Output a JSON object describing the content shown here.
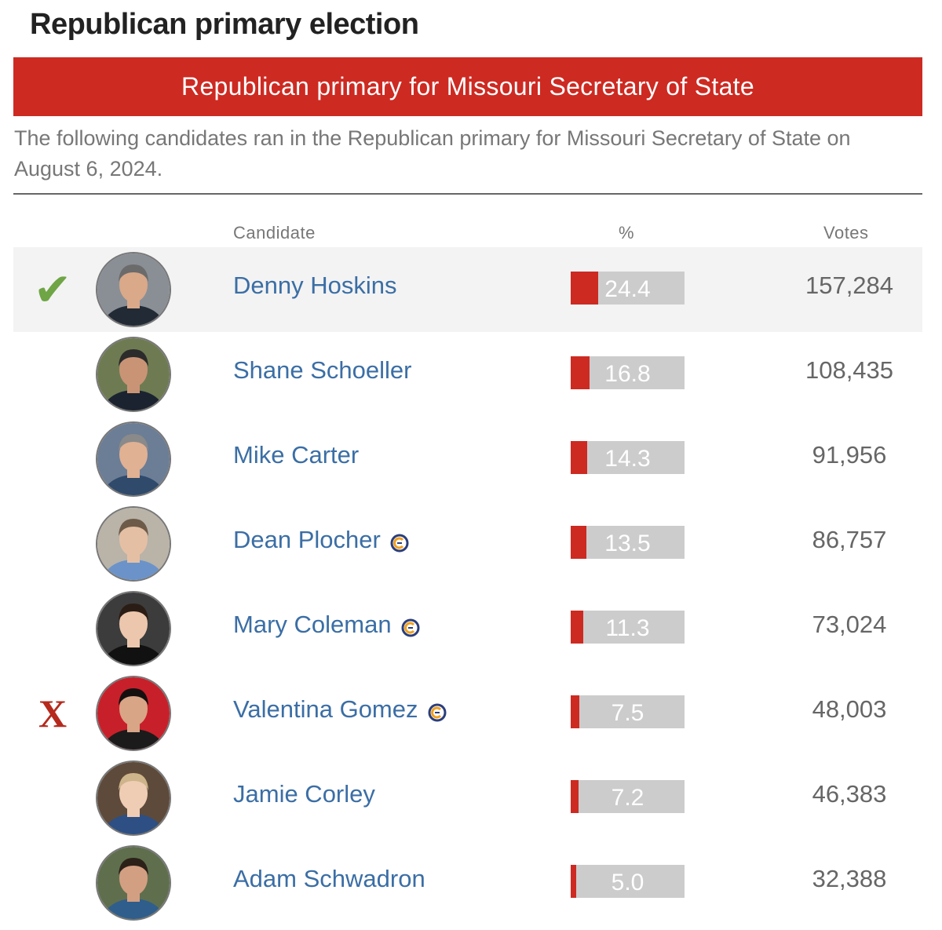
{
  "page_title": "Republican primary election",
  "banner": "Republican primary for Missouri Secretary of State",
  "description": "The following candidates ran in the Republican primary for Missouri Secretary of State on August 6, 2024.",
  "headers": {
    "candidate": "Candidate",
    "percent": "%",
    "votes": "Votes"
  },
  "colors": {
    "accent": "#cd2a22",
    "bar_bg": "#cccccc",
    "link": "#3b6ea5",
    "winner_check": "#6fa545",
    "loser_x": "#b52a1d",
    "winner_row_bg": "#f3f3f3"
  },
  "candidates": [
    {
      "name": "Denny Hoskins",
      "percent": "24.4",
      "percent_value": 24.4,
      "votes": "157,284",
      "status": "winner",
      "mark": "✔",
      "c_icon": false
    },
    {
      "name": "Shane Schoeller",
      "percent": "16.8",
      "percent_value": 16.8,
      "votes": "108,435",
      "status": "",
      "mark": "",
      "c_icon": false
    },
    {
      "name": "Mike Carter",
      "percent": "14.3",
      "percent_value": 14.3,
      "votes": "91,956",
      "status": "",
      "mark": "",
      "c_icon": false
    },
    {
      "name": "Dean Plocher",
      "percent": "13.5",
      "percent_value": 13.5,
      "votes": "86,757",
      "status": "",
      "mark": "",
      "c_icon": true
    },
    {
      "name": "Mary Coleman",
      "percent": "11.3",
      "percent_value": 11.3,
      "votes": "73,024",
      "status": "",
      "mark": "",
      "c_icon": true
    },
    {
      "name": "Valentina Gomez",
      "percent": "7.5",
      "percent_value": 7.5,
      "votes": "48,003",
      "status": "loser",
      "mark": "X",
      "c_icon": true
    },
    {
      "name": "Jamie Corley",
      "percent": "7.2",
      "percent_value": 7.2,
      "votes": "46,383",
      "status": "",
      "mark": "",
      "c_icon": false
    },
    {
      "name": "Adam Schwadron",
      "percent": "5.0",
      "percent_value": 5.0,
      "votes": "32,388",
      "status": "",
      "mark": "",
      "c_icon": false
    }
  ]
}
